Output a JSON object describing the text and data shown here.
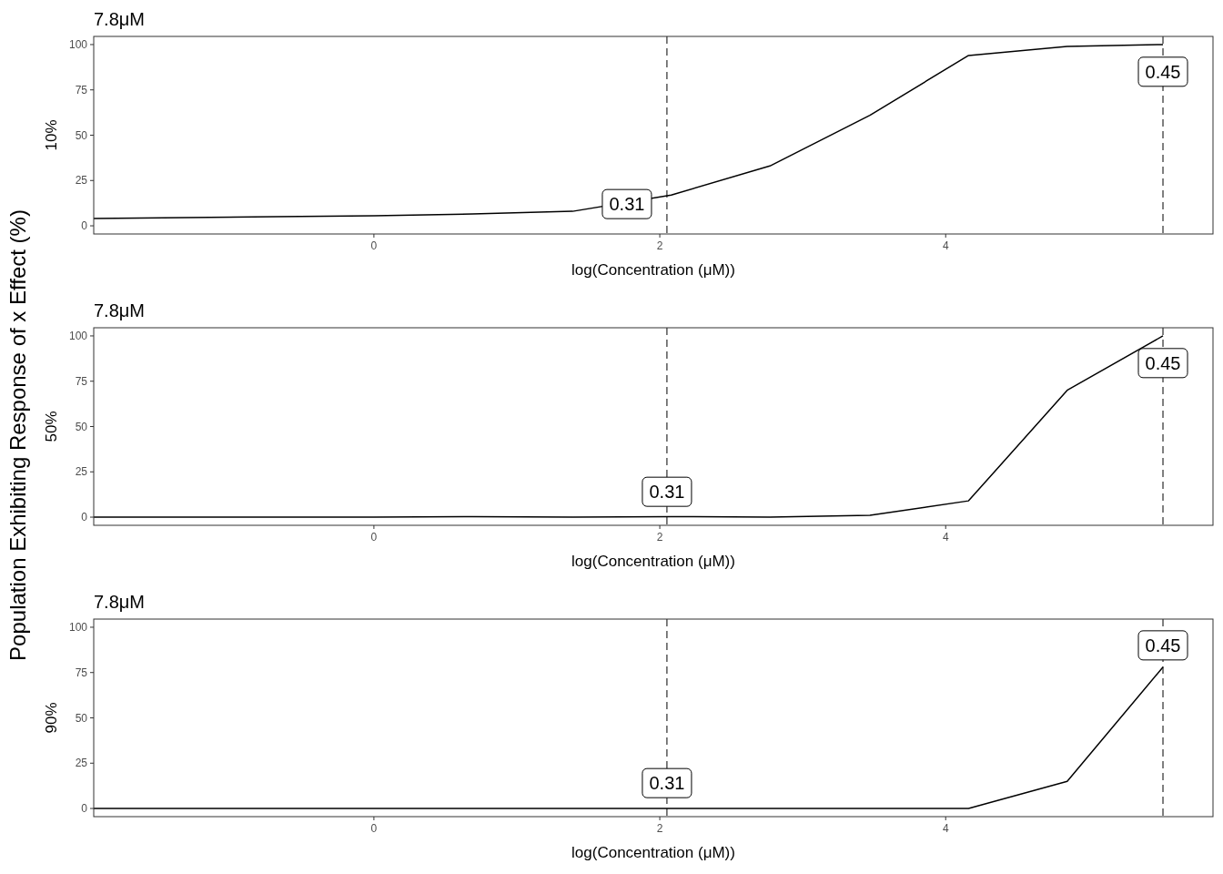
{
  "chart_data": [
    {
      "type": "line",
      "title": "7.8μM",
      "xlabel": "log(Concentration (μM))",
      "ylabel": "10%",
      "x": [
        -1.96,
        -0.69,
        0,
        0.69,
        1.39,
        2.08,
        2.77,
        3.47,
        4.16,
        4.85,
        5.52
      ],
      "series": [
        {
          "color": "#000000",
          "values": [
            4,
            5,
            5.5,
            6.5,
            8,
            17,
            33,
            61,
            94,
            99,
            100
          ]
        }
      ],
      "xlim": [
        -1.96,
        5.87
      ],
      "ylim": [
        -4.5,
        104.5
      ],
      "xticks": [
        0,
        2,
        4
      ],
      "yticks": [
        0,
        25,
        50,
        75,
        100
      ],
      "grid": false,
      "ref_lines": [
        {
          "axis": "x",
          "value": 2.05,
          "line_style": "dashed"
        },
        {
          "axis": "x",
          "value": 5.52,
          "line_style": "dashed"
        }
      ],
      "annotations": [
        {
          "text": "0.31",
          "x": 1.77,
          "y": 12
        },
        {
          "text": "0.45",
          "x": 5.52,
          "y": 85
        }
      ]
    },
    {
      "type": "line",
      "title": "7.8μM",
      "xlabel": "log(Concentration (μM))",
      "ylabel": "50%",
      "x": [
        -1.96,
        -0.69,
        0,
        0.69,
        1.39,
        2.08,
        2.77,
        3.47,
        4.16,
        4.85,
        5.52
      ],
      "series": [
        {
          "color": "#000000",
          "values": [
            0,
            0,
            0,
            0.3,
            0,
            0.3,
            0,
            1,
            9,
            70,
            100
          ]
        }
      ],
      "xlim": [
        -1.96,
        5.87
      ],
      "ylim": [
        -4.5,
        104.5
      ],
      "xticks": [
        0,
        2,
        4
      ],
      "yticks": [
        0,
        25,
        50,
        75,
        100
      ],
      "grid": false,
      "ref_lines": [
        {
          "axis": "x",
          "value": 2.05,
          "line_style": "dashed"
        },
        {
          "axis": "x",
          "value": 5.52,
          "line_style": "dashed"
        }
      ],
      "annotations": [
        "Population Exhibiting Response of x Effect (%)",
        {
          "text": "0.31",
          "x": 2.05,
          "y": 14
        },
        {
          "text": "0.45",
          "x": 5.52,
          "y": 85
        }
      ]
    },
    {
      "type": "line",
      "title": "7.8μM",
      "xlabel": "log(Concentration (μM))",
      "ylabel": "90%",
      "x": [
        -1.96,
        -0.69,
        0,
        0.69,
        1.39,
        2.08,
        2.77,
        3.47,
        4.16,
        4.85,
        5.52
      ],
      "series": [
        {
          "color": "#000000",
          "values": [
            0,
            0,
            0,
            0,
            0,
            0,
            0,
            0,
            0,
            15,
            78
          ]
        }
      ],
      "xlim": [
        -1.96,
        5.87
      ],
      "ylim": [
        -4.5,
        104.5
      ],
      "xticks": [
        0,
        2,
        4
      ],
      "yticks": [
        0,
        25,
        50,
        75,
        100
      ],
      "grid": false,
      "ref_lines": [
        {
          "axis": "x",
          "value": 2.05,
          "line_style": "dashed"
        },
        {
          "axis": "x",
          "value": 5.52,
          "line_style": "dashed"
        }
      ],
      "annotations": [
        {
          "text": "0.31",
          "x": 2.05,
          "y": 14
        },
        {
          "text": "0.45",
          "x": 5.52,
          "y": 90
        }
      ]
    }
  ]
}
